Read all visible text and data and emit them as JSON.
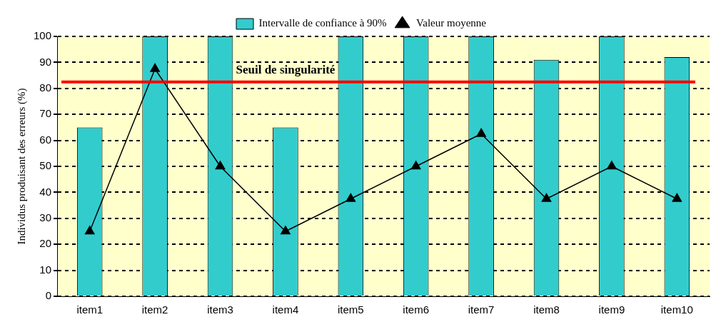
{
  "chart_data": {
    "type": "bar",
    "ylabel": "Individus produisant des erreurs (%)",
    "categories": [
      "item1",
      "item2",
      "item3",
      "item4",
      "item5",
      "item6",
      "item7",
      "item8",
      "item9",
      "item10"
    ],
    "series": [
      {
        "name": "Intervalle de confiance à 90%",
        "type": "bar",
        "color": "#33cccc",
        "values": [
          65,
          100,
          100,
          65,
          100,
          100,
          100,
          91,
          100,
          92
        ]
      },
      {
        "name": "Valeur moyenne",
        "type": "line",
        "color": "#000000",
        "marker": "triangle",
        "values": [
          25,
          87.5,
          50,
          25,
          37.5,
          50,
          62.5,
          37.5,
          50,
          37.5
        ]
      }
    ],
    "ylim": [
      0,
      100
    ],
    "yticks": [
      0,
      10,
      20,
      30,
      40,
      50,
      60,
      70,
      80,
      90,
      100
    ],
    "grid": "y",
    "legend": "top",
    "ref_lines": [
      {
        "axis": "y",
        "value": 82.5,
        "label": "Seuil de singularité",
        "color": "#ff0000"
      }
    ]
  }
}
